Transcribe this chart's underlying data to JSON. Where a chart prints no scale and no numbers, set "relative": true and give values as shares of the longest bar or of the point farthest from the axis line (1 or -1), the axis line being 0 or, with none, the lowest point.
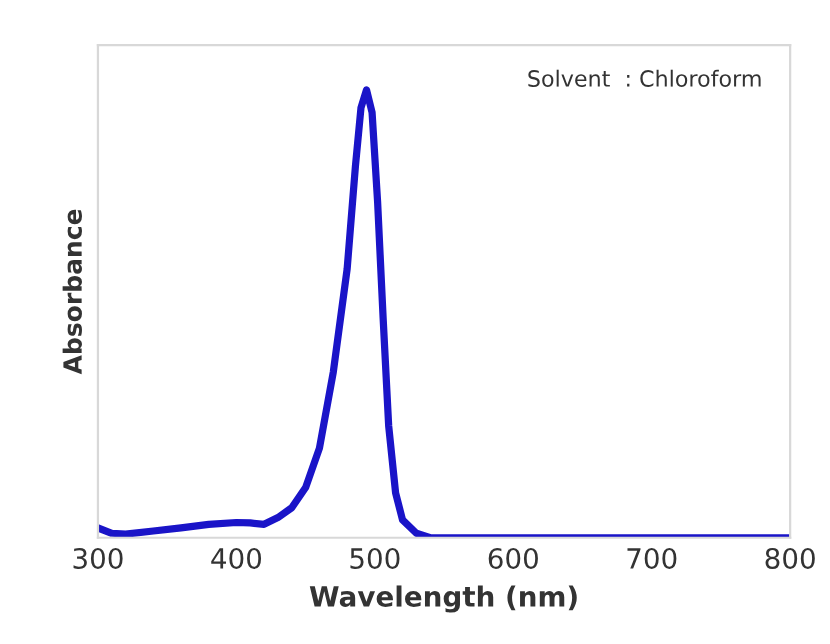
{
  "chart_data": {
    "type": "line",
    "relative": true,
    "xlabel": "Wavelength (nm)",
    "ylabel": "Absorbance",
    "annotations": [
      "Solvent  : Chloroform"
    ],
    "xlim": [
      300,
      800
    ],
    "xticks": [
      300,
      400,
      500,
      600,
      700,
      800
    ],
    "grid": false,
    "marker": "none",
    "line_style": "solid",
    "series": [
      {
        "color": "#1a14c8",
        "x": [
          300,
          310,
          320,
          340,
          360,
          380,
          400,
          410,
          420,
          430,
          440,
          450,
          460,
          470,
          480,
          486,
          490,
          494,
          498,
          502,
          506,
          510,
          515,
          520,
          530,
          540,
          600,
          700,
          800
        ],
        "values": [
          0.022,
          0.01,
          0.008,
          0.015,
          0.022,
          0.03,
          0.034,
          0.033,
          0.03,
          0.045,
          0.067,
          0.112,
          0.2,
          0.37,
          0.6,
          0.83,
          0.96,
          1.0,
          0.95,
          0.75,
          0.49,
          0.25,
          0.1,
          0.04,
          0.01,
          0,
          0,
          0,
          0
        ]
      }
    ]
  }
}
